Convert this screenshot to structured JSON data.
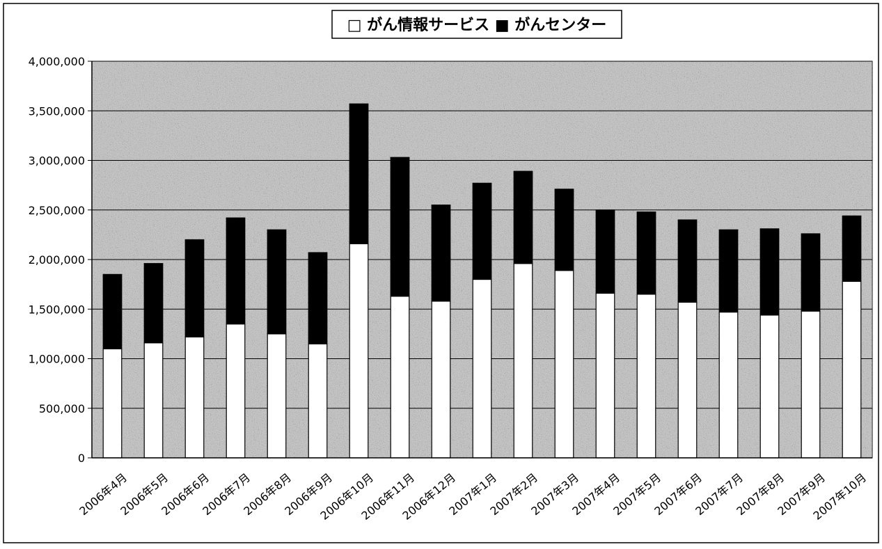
{
  "chart_data": {
    "type": "bar",
    "stacked": true,
    "categories": [
      "2006年4月",
      "2006年5月",
      "2006年6月",
      "2006年7月",
      "2006年8月",
      "2006年9月",
      "2006年10月",
      "2006年11月",
      "2006年12月",
      "2007年1月",
      "2007年2月",
      "2007年3月",
      "2007年4月",
      "2007年5月",
      "2007年6月",
      "2007年7月",
      "2007年8月",
      "2007年9月",
      "2007年10月"
    ],
    "series": [
      {
        "name": "がん情報サービス",
        "color": "#ffffff",
        "values": [
          1100000,
          1160000,
          1220000,
          1350000,
          1250000,
          1150000,
          2160000,
          1630000,
          1580000,
          1800000,
          1960000,
          1890000,
          1660000,
          1650000,
          1570000,
          1470000,
          1440000,
          1480000,
          1780000
        ]
      },
      {
        "name": "がんセンター",
        "color": "#000000",
        "values": [
          750000,
          800000,
          980000,
          1070000,
          1050000,
          920000,
          1410000,
          1400000,
          970000,
          970000,
          930000,
          820000,
          840000,
          830000,
          830000,
          830000,
          870000,
          780000,
          660000
        ]
      }
    ],
    "legend": {
      "position": "top-center",
      "text": "□ がん情報サービス ■ がんセンター"
    },
    "y_ticks": [
      "0",
      "500,000",
      "1,000,000",
      "1,500,000",
      "2,000,000",
      "2,500,000",
      "3,000,000",
      "3,500,000",
      "4,000,000"
    ],
    "ylim": [
      0,
      4000000
    ],
    "grid": true,
    "plot_background": "#9a9a9a"
  }
}
